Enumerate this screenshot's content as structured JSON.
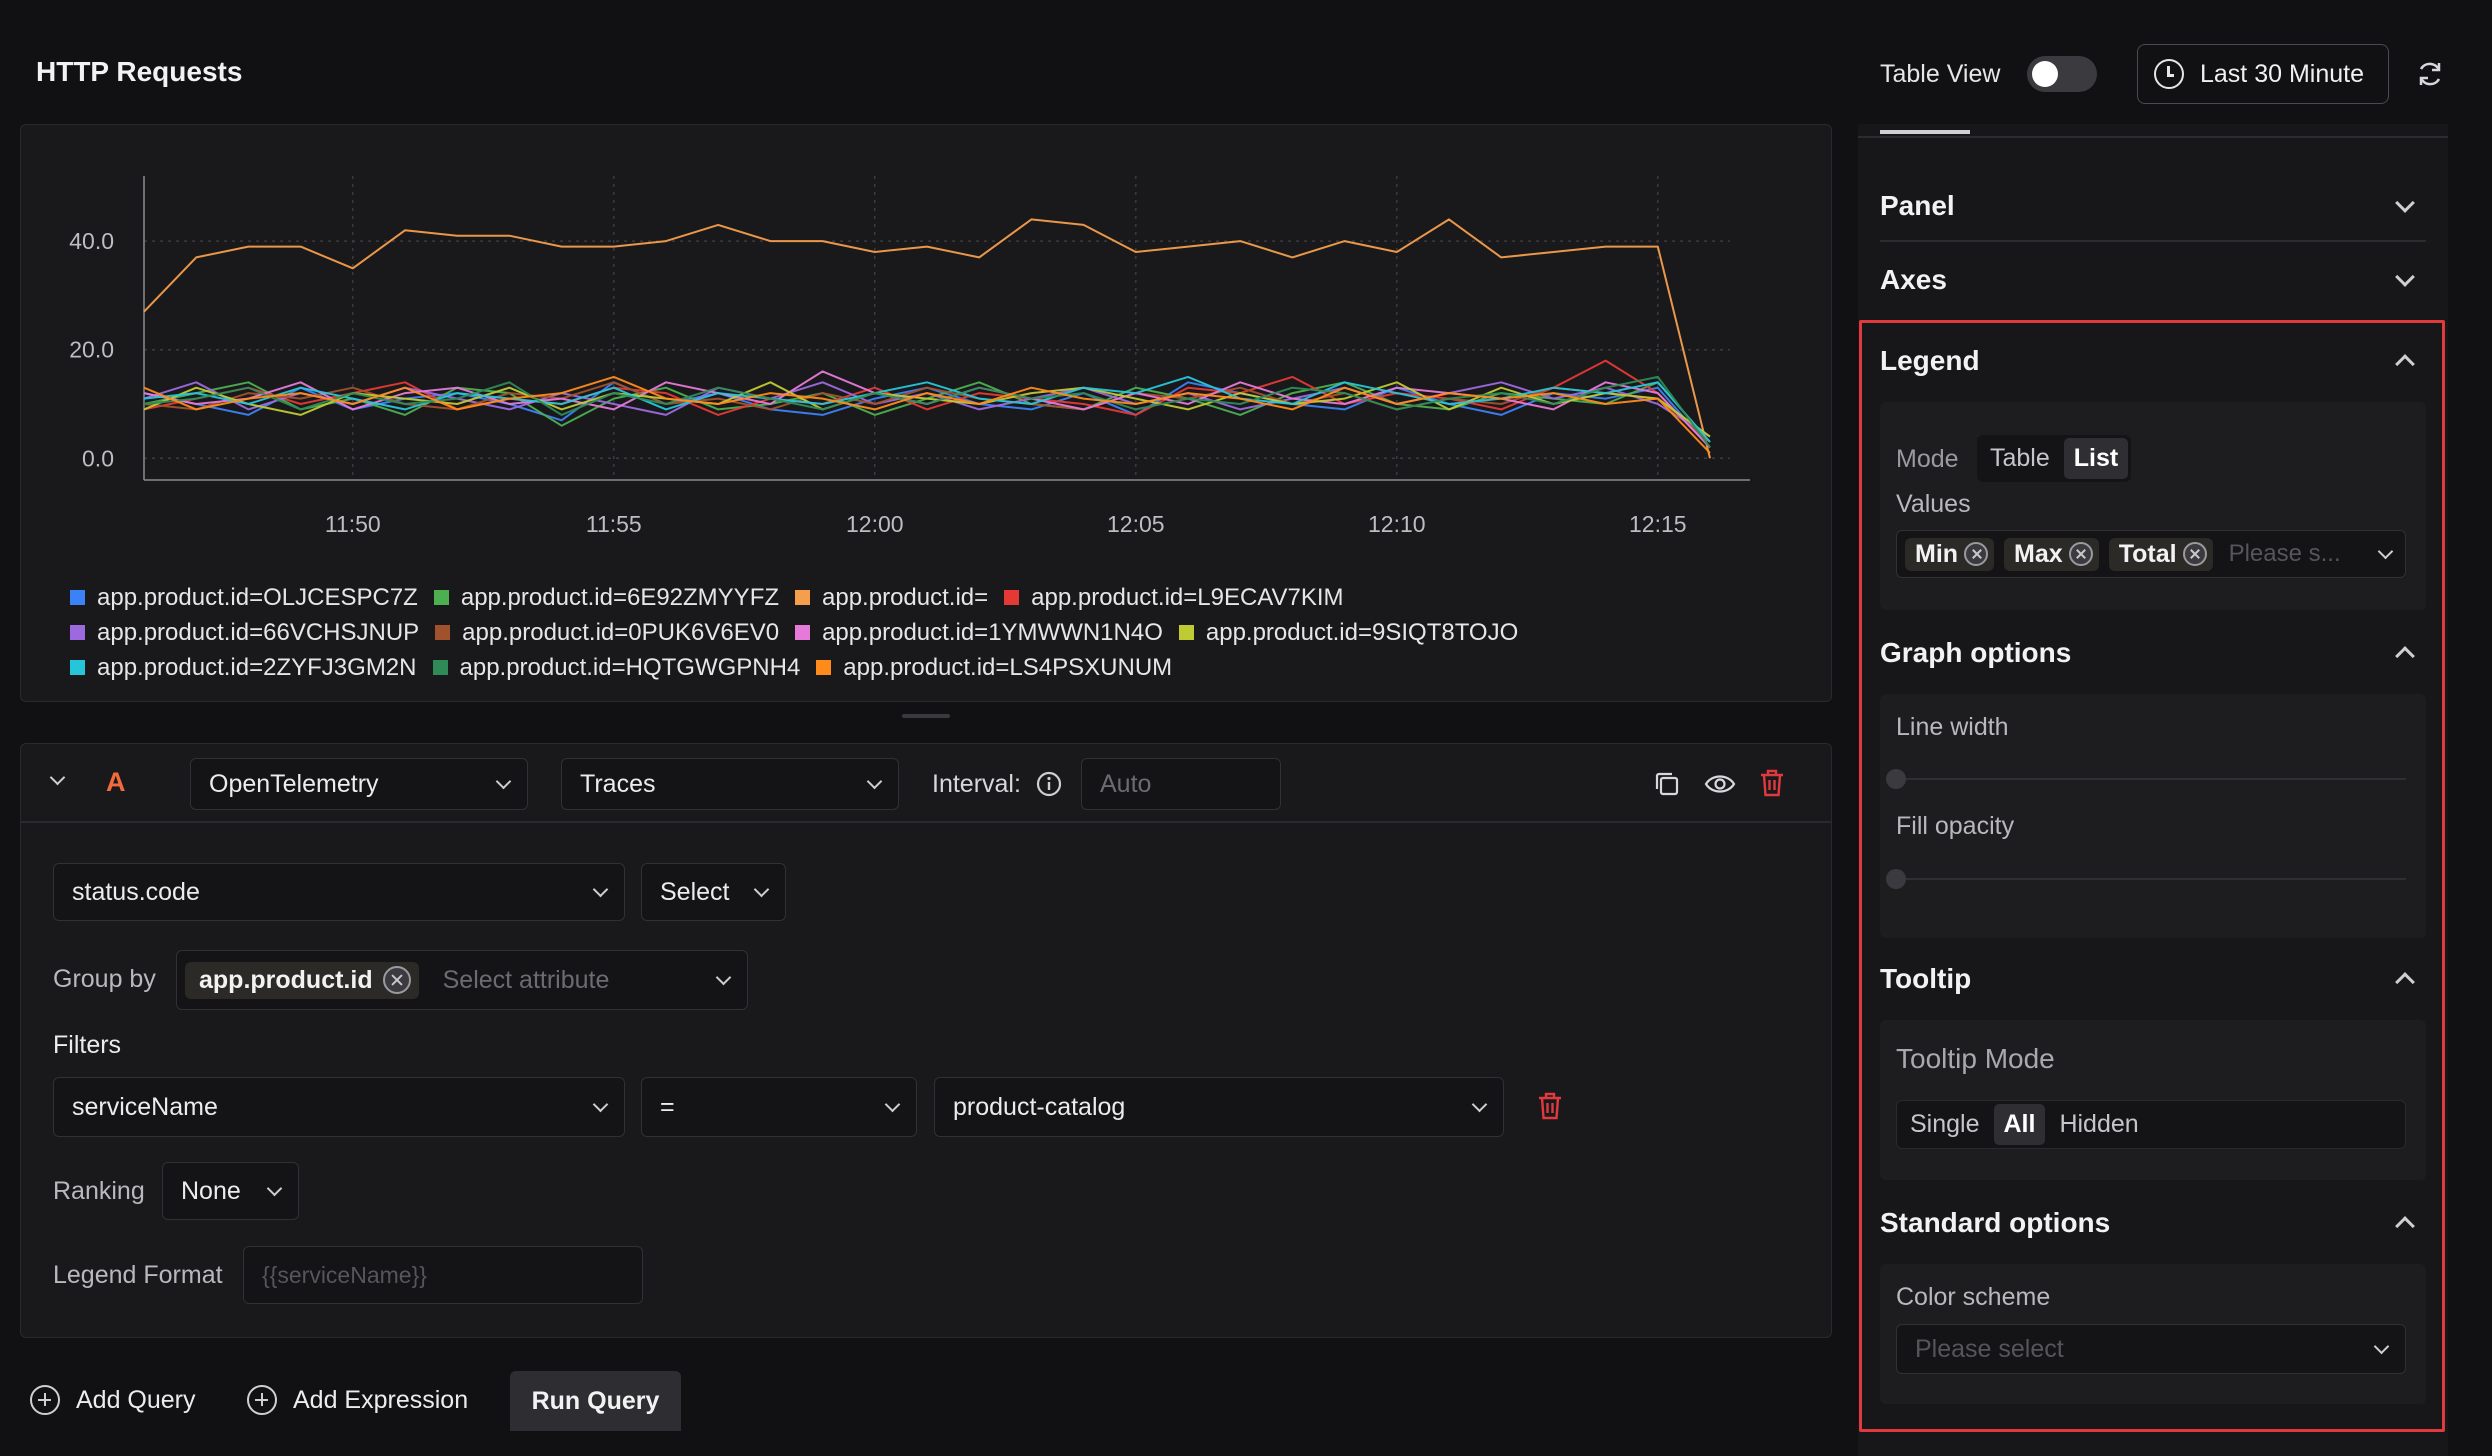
{
  "header": {
    "title": "HTTP Requests",
    "table_view_label": "Table View",
    "table_view_on": false,
    "time_range_label": "Last 30 Minute"
  },
  "chart_data": {
    "type": "line",
    "title": "",
    "xlabel": "",
    "ylabel": "",
    "x_ticks": [
      "11:50",
      "11:55",
      "12:00",
      "12:05",
      "12:10",
      "12:15"
    ],
    "y_ticks": [
      "0.0",
      "20.0",
      "40.0"
    ],
    "ylim": [
      -4,
      52
    ],
    "x": [
      "11:46",
      "11:47",
      "11:48",
      "11:49",
      "11:50",
      "11:51",
      "11:52",
      "11:53",
      "11:54",
      "11:55",
      "11:56",
      "11:57",
      "11:58",
      "11:59",
      "12:00",
      "12:01",
      "12:02",
      "12:03",
      "12:04",
      "12:05",
      "12:06",
      "12:07",
      "12:08",
      "12:09",
      "12:10",
      "12:11",
      "12:12",
      "12:13",
      "12:14",
      "12:15",
      "12:16"
    ],
    "grid": true,
    "legend_position": "bottom",
    "series": [
      {
        "name": "app.product.id=OLJCESPC7Z",
        "color": "#3b82f6",
        "values": [
          12,
          10,
          8,
          13,
          9,
          11,
          12,
          10,
          7,
          14,
          10,
          12,
          9,
          8,
          11,
          13,
          10,
          9,
          12,
          8,
          14,
          12,
          10,
          9,
          13,
          10,
          8,
          12,
          11,
          13,
          2
        ]
      },
      {
        "name": "app.product.id=6E92ZMYYFZ",
        "color": "#4caf50",
        "values": [
          10,
          12,
          14,
          9,
          11,
          8,
          13,
          12,
          6,
          11,
          13,
          9,
          10,
          12,
          8,
          11,
          14,
          10,
          9,
          13,
          11,
          8,
          12,
          14,
          10,
          9,
          12,
          11,
          10,
          14,
          3
        ]
      },
      {
        "name": "app.product.id=",
        "color": "#f59e4c",
        "values": [
          27,
          37,
          39,
          39,
          35,
          42,
          41,
          41,
          39,
          39,
          40,
          43,
          40,
          40,
          38,
          39,
          37,
          44,
          43,
          38,
          39,
          40,
          37,
          40,
          38,
          44,
          37,
          38,
          39,
          39,
          0
        ]
      },
      {
        "name": "app.product.id=L9ECAV7KIM",
        "color": "#e53935",
        "values": [
          9,
          11,
          13,
          10,
          12,
          14,
          9,
          11,
          10,
          13,
          12,
          8,
          11,
          10,
          13,
          9,
          12,
          11,
          10,
          8,
          13,
          12,
          15,
          10,
          12,
          11,
          9,
          13,
          18,
          12,
          2
        ]
      },
      {
        "name": "app.product.id=66VCHSJNUP",
        "color": "#9c6ade",
        "values": [
          11,
          14,
          9,
          12,
          10,
          13,
          11,
          9,
          12,
          10,
          8,
          13,
          11,
          14,
          10,
          12,
          9,
          11,
          13,
          10,
          12,
          9,
          11,
          13,
          10,
          12,
          14,
          11,
          13,
          10,
          4
        ]
      },
      {
        "name": "app.product.id=0PUK6V6EV0",
        "color": "#a0522d",
        "values": [
          10,
          9,
          12,
          11,
          13,
          10,
          9,
          12,
          11,
          14,
          10,
          11,
          9,
          12,
          10,
          13,
          11,
          10,
          9,
          12,
          11,
          13,
          10,
          12,
          9,
          11,
          10,
          13,
          12,
          11,
          3
        ]
      },
      {
        "name": "app.product.id=1YMWWN1N4O",
        "color": "#e67ad8",
        "values": [
          12,
          10,
          11,
          14,
          9,
          12,
          13,
          10,
          11,
          9,
          14,
          12,
          10,
          16,
          12,
          10,
          13,
          11,
          9,
          12,
          10,
          14,
          11,
          10,
          13,
          12,
          11,
          9,
          14,
          12,
          2
        ]
      },
      {
        "name": "app.product.id=9SIQT8TOJO",
        "color": "#c0ca33",
        "values": [
          9,
          13,
          10,
          8,
          12,
          11,
          10,
          13,
          9,
          12,
          11,
          10,
          14,
          9,
          12,
          11,
          10,
          12,
          13,
          11,
          9,
          12,
          10,
          11,
          14,
          9,
          13,
          10,
          12,
          11,
          4
        ]
      },
      {
        "name": "app.product.id=2ZYFJ3GM2N",
        "color": "#26c6da",
        "values": [
          11,
          12,
          10,
          13,
          11,
          9,
          12,
          11,
          10,
          13,
          9,
          12,
          11,
          10,
          12,
          14,
          11,
          10,
          13,
          12,
          15,
          11,
          10,
          14,
          12,
          10,
          11,
          13,
          12,
          14,
          3
        ]
      },
      {
        "name": "app.product.id=HQTGWGPNH4",
        "color": "#2e8b57",
        "values": [
          10,
          11,
          13,
          9,
          12,
          10,
          11,
          14,
          8,
          12,
          10,
          13,
          11,
          9,
          12,
          10,
          13,
          11,
          12,
          9,
          11,
          10,
          13,
          12,
          9,
          11,
          12,
          10,
          13,
          15,
          2
        ]
      },
      {
        "name": "app.product.id=LS4PSXUNUM",
        "color": "#ff8c1a",
        "values": [
          13,
          9,
          11,
          12,
          10,
          13,
          9,
          11,
          12,
          15,
          11,
          10,
          12,
          11,
          9,
          12,
          10,
          13,
          11,
          10,
          12,
          11,
          9,
          13,
          10,
          12,
          11,
          12,
          10,
          11,
          1
        ]
      }
    ]
  },
  "query": {
    "letter": "A",
    "datasource": "OpenTelemetry",
    "source_type": "Traces",
    "interval_label": "Interval:",
    "interval_placeholder": "Auto",
    "metric_field": "status.code",
    "aggregation": "Select",
    "group_by_label": "Group by",
    "group_by_chip": "app.product.id",
    "group_by_placeholder": "Select attribute",
    "filters_label": "Filters",
    "filter_key": "serviceName",
    "filter_op": "=",
    "filter_value": "product-catalog",
    "ranking_label": "Ranking",
    "ranking_value": "None",
    "legend_format_label": "Legend Format",
    "legend_format_placeholder": "{{serviceName}}"
  },
  "actions": {
    "add_query": "Add Query",
    "add_expression": "Add Expression",
    "run_query": "Run Query"
  },
  "sidebar": {
    "panel": "Panel",
    "axes": "Axes",
    "legend": {
      "title": "Legend",
      "mode_label": "Mode",
      "mode_options": [
        "Table",
        "List"
      ],
      "mode_selected": "List",
      "values_label": "Values",
      "values_chips": [
        "Min",
        "Max",
        "Total"
      ],
      "values_placeholder": "Please s..."
    },
    "graph_options": {
      "title": "Graph options",
      "line_width_label": "Line width",
      "fill_opacity_label": "Fill opacity"
    },
    "tooltip": {
      "title": "Tooltip",
      "mode_label": "Tooltip Mode",
      "mode_options": [
        "Single",
        "All",
        "Hidden"
      ],
      "mode_selected": "All"
    },
    "standard_options": {
      "title": "Standard options",
      "color_scheme_label": "Color scheme",
      "color_scheme_placeholder": "Please select"
    }
  }
}
